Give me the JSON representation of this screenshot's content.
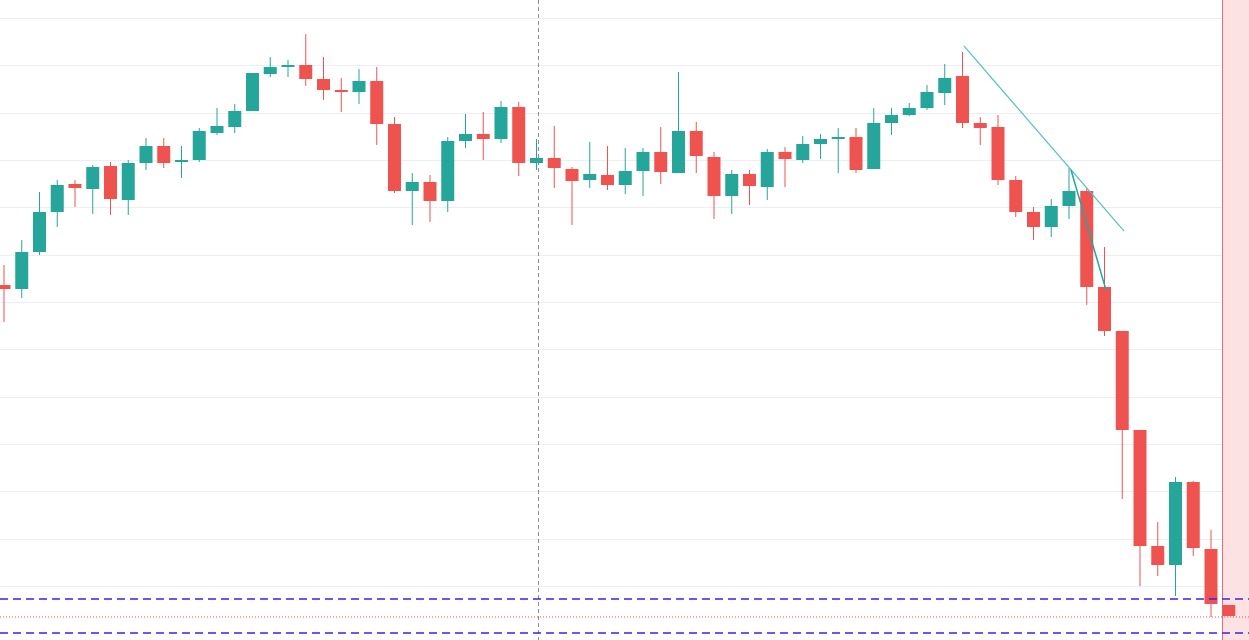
{
  "chart_data": {
    "type": "candlestick",
    "ylim": [
      0,
      640
    ],
    "yticks": [
      622,
      575,
      527,
      480,
      433,
      385,
      338,
      291,
      243,
      196,
      149,
      101,
      54
    ],
    "grid": true,
    "up_color": "#26a69a",
    "down_color": "#ef5350",
    "open": [
      355,
      351,
      388,
      428,
      456,
      451,
      474,
      440,
      477,
      494,
      478,
      480,
      507,
      513,
      529,
      566,
      573,
      575,
      561,
      550,
      548,
      559,
      516,
      449,
      458,
      439,
      499,
      506,
      501,
      533,
      477,
      482,
      471,
      460,
      465,
      455,
      469,
      488,
      467,
      509,
      483,
      444,
      466,
      453,
      488,
      480,
      496,
      501,
      503,
      471,
      517,
      525,
      532,
      547,
      564,
      517,
      513,
      460,
      428,
      413,
      434,
      449,
      353,
      309,
      210,
      94,
      75,
      158,
      91,
      35
    ],
    "high": [
      375,
      400,
      448,
      460,
      460,
      475,
      478,
      480,
      502,
      502,
      494,
      512,
      532,
      536,
      567,
      583,
      580,
      606,
      583,
      562,
      571,
      573,
      523,
      467,
      465,
      503,
      526,
      528,
      539,
      538,
      501,
      514,
      473,
      498,
      494,
      492,
      492,
      513,
      568,
      518,
      488,
      470,
      470,
      491,
      493,
      504,
      506,
      512,
      512,
      532,
      532,
      537,
      555,
      576,
      588,
      523,
      525,
      464,
      433,
      441,
      472,
      452,
      393,
      309,
      210,
      118,
      163,
      159,
      110,
      35
    ],
    "low": [
      318,
      342,
      385,
      413,
      433,
      426,
      425,
      425,
      470,
      472,
      462,
      478,
      505,
      507,
      529,
      563,
      563,
      554,
      540,
      528,
      536,
      495,
      447,
      415,
      418,
      428,
      492,
      480,
      497,
      464,
      470,
      452,
      415,
      452,
      450,
      446,
      444,
      456,
      467,
      467,
      421,
      426,
      435,
      440,
      453,
      477,
      481,
      467,
      467,
      471,
      505,
      524,
      530,
      535,
      512,
      495,
      455,
      423,
      400,
      403,
      421,
      335,
      304,
      141,
      54,
      64,
      44,
      84,
      23,
      24
    ],
    "close": [
      351,
      388,
      428,
      455,
      452,
      473,
      441,
      477,
      494,
      477,
      480,
      509,
      514,
      529,
      567,
      573,
      575,
      561,
      550,
      548,
      559,
      516,
      449,
      458,
      439,
      499,
      506,
      501,
      533,
      477,
      482,
      472,
      459,
      466,
      455,
      469,
      488,
      468,
      509,
      484,
      444,
      466,
      454,
      488,
      481,
      496,
      501,
      503,
      470,
      517,
      525,
      532,
      548,
      562,
      517,
      512,
      460,
      428,
      413,
      434,
      449,
      353,
      309,
      210,
      94,
      75,
      158,
      92,
      36,
      24
    ],
    "levels": [
      {
        "value": 41,
        "color": "#3b1ff2",
        "style": "dashed"
      },
      {
        "value": 7,
        "color": "#3b1ff2",
        "style": "dashed"
      },
      {
        "value": 23,
        "color": "#ef5350",
        "style": "dotted"
      }
    ]
  }
}
